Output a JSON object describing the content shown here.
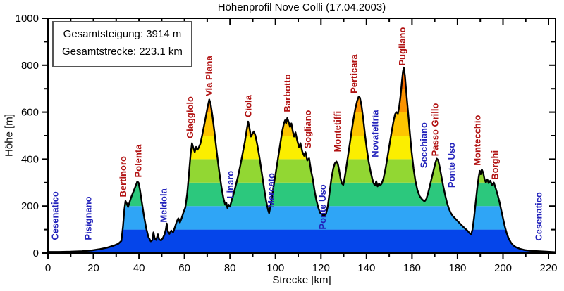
{
  "title": "Höhenprofil Nove Colli (17.04.2003)",
  "info_box": {
    "total_climb": "Gesamtsteigung: 3914 m",
    "total_distance": "Gesamtstrecke: 223.1 km"
  },
  "chart_data": {
    "type": "area",
    "title": "Höhenprofil Nove Colli (17.04.2003)",
    "xlabel": "Strecke [km]",
    "ylabel": "Höhe [m]",
    "xlim": [
      0,
      223.1
    ],
    "ylim": [
      0,
      1000
    ],
    "x_major_tick_step": 20,
    "x_minor_tick_step": 10,
    "y_major_tick_step": 200,
    "y_minor_tick_step": 100,
    "grid": "off",
    "total_climb_m": 3914,
    "total_distance_km": 223.1,
    "background_color": "#ffffff",
    "frame_color": "#000000",
    "line_color": "#000000",
    "label_colors": {
      "town": "#2222bb",
      "climb": "#b11212"
    },
    "elevation_bands": [
      {
        "from": 0,
        "to": 100,
        "color": "#0545ea"
      },
      {
        "from": 100,
        "to": 200,
        "color": "#2fa5f6"
      },
      {
        "from": 200,
        "to": 300,
        "color": "#2cc87d"
      },
      {
        "from": 300,
        "to": 400,
        "color": "#92d733"
      },
      {
        "from": 400,
        "to": 500,
        "color": "#fbee00"
      },
      {
        "from": 500,
        "to": 600,
        "color": "#fdc500"
      },
      {
        "from": 600,
        "to": 700,
        "color": "#fb9300"
      },
      {
        "from": 700,
        "to": 800,
        "color": "#f66c00"
      }
    ],
    "labels": [
      {
        "name": "Cesenatico",
        "km": 3.2,
        "alt": 55,
        "type": "town"
      },
      {
        "name": "Pisignano",
        "km": 17.8,
        "alt": 55,
        "type": "town"
      },
      {
        "name": "Bertinoro",
        "km": 33.2,
        "alt": 238,
        "type": "climb"
      },
      {
        "name": "Polenta",
        "km": 39.8,
        "alt": 322,
        "type": "climb"
      },
      {
        "name": "Meldola",
        "km": 50.9,
        "alt": 130,
        "type": "town"
      },
      {
        "name": "Giaggiolo",
        "km": 62.6,
        "alt": 488,
        "type": "climb"
      },
      {
        "name": "Via Piana",
        "km": 71.0,
        "alt": 668,
        "type": "climb"
      },
      {
        "name": "Linaro",
        "km": 80.3,
        "alt": 232,
        "type": "town"
      },
      {
        "name": "Ciola",
        "km": 88.1,
        "alt": 578,
        "type": "climb"
      },
      {
        "name": "Mercato",
        "km": 98.2,
        "alt": 192,
        "type": "town"
      },
      {
        "name": "Barbotto",
        "km": 105.4,
        "alt": 600,
        "type": "climb"
      },
      {
        "name": "Sogliano",
        "km": 114.4,
        "alt": 445,
        "type": "climb"
      },
      {
        "name": "Ponte Uso",
        "km": 120.9,
        "alt": 100,
        "type": "town"
      },
      {
        "name": "Montetiffi",
        "km": 127.4,
        "alt": 430,
        "type": "climb"
      },
      {
        "name": "Perticara",
        "km": 134.6,
        "alt": 680,
        "type": "climb"
      },
      {
        "name": "Novafeltria",
        "km": 143.9,
        "alt": 408,
        "type": "town"
      },
      {
        "name": "Pugliano",
        "km": 155.9,
        "alt": 798,
        "type": "climb"
      },
      {
        "name": "Secchiano",
        "km": 165.3,
        "alt": 362,
        "type": "town"
      },
      {
        "name": "Passo Grillo",
        "km": 170.2,
        "alt": 412,
        "type": "climb"
      },
      {
        "name": "Ponte Uso",
        "km": 177.6,
        "alt": 278,
        "type": "town"
      },
      {
        "name": "Montecchio",
        "km": 188.9,
        "alt": 372,
        "type": "climb"
      },
      {
        "name": "Borghi",
        "km": 196.6,
        "alt": 312,
        "type": "climb"
      },
      {
        "name": "Cesenatico",
        "km": 215.8,
        "alt": 52,
        "type": "town"
      }
    ],
    "profile_km_m": [
      [
        0,
        5
      ],
      [
        5,
        5
      ],
      [
        10,
        6
      ],
      [
        15,
        8
      ],
      [
        19,
        11
      ],
      [
        23,
        17
      ],
      [
        26,
        23
      ],
      [
        29,
        32
      ],
      [
        31,
        40
      ],
      [
        32.3,
        52
      ],
      [
        33,
        115
      ],
      [
        33.6,
        185
      ],
      [
        34.1,
        222
      ],
      [
        34.6,
        212
      ],
      [
        35.2,
        196
      ],
      [
        35.9,
        218
      ],
      [
        36.7,
        240
      ],
      [
        37.6,
        262
      ],
      [
        38.5,
        284
      ],
      [
        39.3,
        305
      ],
      [
        39.8,
        300
      ],
      [
        40.4,
        272
      ],
      [
        41.2,
        220
      ],
      [
        42.2,
        158
      ],
      [
        43.2,
        105
      ],
      [
        44.2,
        68
      ],
      [
        45.2,
        50
      ],
      [
        45.9,
        55
      ],
      [
        46.4,
        88
      ],
      [
        46.9,
        62
      ],
      [
        47.6,
        56
      ],
      [
        48.3,
        80
      ],
      [
        48.9,
        58
      ],
      [
        49.7,
        54
      ],
      [
        50.5,
        64
      ],
      [
        51.2,
        78
      ],
      [
        51.8,
        100
      ],
      [
        52.2,
        126
      ],
      [
        52.7,
        92
      ],
      [
        53.4,
        82
      ],
      [
        54.2,
        96
      ],
      [
        55,
        88
      ],
      [
        55.8,
        110
      ],
      [
        56.6,
        134
      ],
      [
        57.3,
        148
      ],
      [
        58,
        130
      ],
      [
        58.8,
        150
      ],
      [
        59.6,
        174
      ],
      [
        60.4,
        195
      ],
      [
        61.2,
        252
      ],
      [
        62,
        340
      ],
      [
        62.7,
        420
      ],
      [
        63.3,
        468
      ],
      [
        63.9,
        448
      ],
      [
        64.5,
        430
      ],
      [
        65.1,
        452
      ],
      [
        65.7,
        440
      ],
      [
        66.3,
        450
      ],
      [
        67,
        466
      ],
      [
        67.8,
        502
      ],
      [
        68.6,
        542
      ],
      [
        69.4,
        582
      ],
      [
        70.2,
        624
      ],
      [
        70.9,
        654
      ],
      [
        71.5,
        636
      ],
      [
        72.3,
        584
      ],
      [
        73.2,
        515
      ],
      [
        74.2,
        428
      ],
      [
        75.2,
        352
      ],
      [
        76.2,
        285
      ],
      [
        77.1,
        235
      ],
      [
        77.9,
        206
      ],
      [
        78.4,
        214
      ],
      [
        78.9,
        192
      ],
      [
        79.4,
        206
      ],
      [
        80,
        198
      ],
      [
        80.8,
        226
      ],
      [
        81.7,
        255
      ],
      [
        82.6,
        290
      ],
      [
        83.5,
        325
      ],
      [
        84.5,
        370
      ],
      [
        85.5,
        420
      ],
      [
        86.5,
        472
      ],
      [
        87.3,
        520
      ],
      [
        88,
        560
      ],
      [
        88.6,
        532
      ],
      [
        89.2,
        496
      ],
      [
        89.9,
        508
      ],
      [
        90.5,
        518
      ],
      [
        91.2,
        500
      ],
      [
        92,
        462
      ],
      [
        92.9,
        412
      ],
      [
        93.9,
        348
      ],
      [
        94.9,
        282
      ],
      [
        95.9,
        222
      ],
      [
        96.7,
        185
      ],
      [
        97.2,
        170
      ],
      [
        97.8,
        198
      ],
      [
        98.6,
        248
      ],
      [
        99.4,
        298
      ],
      [
        100.3,
        352
      ],
      [
        101.2,
        408
      ],
      [
        102.1,
        465
      ],
      [
        103,
        520
      ],
      [
        103.7,
        552
      ],
      [
        104.2,
        565
      ],
      [
        104.7,
        553
      ],
      [
        105.2,
        575
      ],
      [
        105.8,
        558
      ],
      [
        106.4,
        537
      ],
      [
        107,
        552
      ],
      [
        107.6,
        518
      ],
      [
        108.2,
        496
      ],
      [
        108.8,
        514
      ],
      [
        109.6,
        478
      ],
      [
        110.4,
        450
      ],
      [
        111,
        468
      ],
      [
        111.8,
        432
      ],
      [
        112.6,
        414
      ],
      [
        113.2,
        430
      ],
      [
        114,
        394
      ],
      [
        114.8,
        404
      ],
      [
        115.6,
        352
      ],
      [
        116.4,
        315
      ],
      [
        117.2,
        265
      ],
      [
        118,
        225
      ],
      [
        118.8,
        194
      ],
      [
        119.6,
        172
      ],
      [
        120.5,
        163
      ],
      [
        121.4,
        160
      ],
      [
        122.2,
        166
      ],
      [
        123,
        200
      ],
      [
        123.8,
        258
      ],
      [
        124.6,
        318
      ],
      [
        125.4,
        360
      ],
      [
        126.1,
        382
      ],
      [
        126.8,
        390
      ],
      [
        127.4,
        380
      ],
      [
        128,
        352
      ],
      [
        128.6,
        318
      ],
      [
        129.2,
        296
      ],
      [
        129.8,
        290
      ],
      [
        130.4,
        318
      ],
      [
        131.1,
        362
      ],
      [
        131.9,
        415
      ],
      [
        132.7,
        468
      ],
      [
        133.5,
        520
      ],
      [
        134.3,
        570
      ],
      [
        135.1,
        615
      ],
      [
        135.9,
        648
      ],
      [
        136.6,
        666
      ],
      [
        137.1,
        662
      ],
      [
        137.8,
        630
      ],
      [
        138.6,
        570
      ],
      [
        139.4,
        500
      ],
      [
        140.2,
        438
      ],
      [
        141,
        388
      ],
      [
        141.8,
        348
      ],
      [
        142.5,
        318
      ],
      [
        143.1,
        298
      ],
      [
        143.7,
        288
      ],
      [
        144.3,
        306
      ],
      [
        144.9,
        284
      ],
      [
        145.5,
        296
      ],
      [
        146.1,
        288
      ],
      [
        146.7,
        296
      ],
      [
        147.5,
        318
      ],
      [
        148.4,
        360
      ],
      [
        149.3,
        412
      ],
      [
        150.2,
        465
      ],
      [
        151.1,
        518
      ],
      [
        151.9,
        562
      ],
      [
        152.6,
        592
      ],
      [
        153.2,
        600
      ],
      [
        153.8,
        594
      ],
      [
        154.4,
        625
      ],
      [
        155,
        670
      ],
      [
        155.5,
        722
      ],
      [
        156,
        772
      ],
      [
        156.4,
        790
      ],
      [
        156.9,
        755
      ],
      [
        157.5,
        685
      ],
      [
        158.3,
        598
      ],
      [
        159.1,
        508
      ],
      [
        159.9,
        428
      ],
      [
        160.7,
        360
      ],
      [
        161.5,
        308
      ],
      [
        162.4,
        268
      ],
      [
        163.4,
        242
      ],
      [
        164.5,
        228
      ],
      [
        165.5,
        220
      ],
      [
        166.3,
        230
      ],
      [
        167.1,
        256
      ],
      [
        167.9,
        288
      ],
      [
        168.7,
        320
      ],
      [
        169.5,
        352
      ],
      [
        170.3,
        384
      ],
      [
        170.9,
        402
      ],
      [
        171.5,
        396
      ],
      [
        172.2,
        366
      ],
      [
        173,
        324
      ],
      [
        173.8,
        282
      ],
      [
        174.6,
        246
      ],
      [
        175.4,
        214
      ],
      [
        176.2,
        190
      ],
      [
        177,
        172
      ],
      [
        177.9,
        158
      ],
      [
        178.9,
        148
      ],
      [
        180.1,
        136
      ],
      [
        181.5,
        122
      ],
      [
        182.9,
        108
      ],
      [
        184.3,
        96
      ],
      [
        185.3,
        85
      ],
      [
        186,
        80
      ],
      [
        186.6,
        100
      ],
      [
        187.3,
        152
      ],
      [
        188,
        215
      ],
      [
        188.7,
        278
      ],
      [
        189.3,
        322
      ],
      [
        189.8,
        350
      ],
      [
        190.2,
        336
      ],
      [
        190.7,
        356
      ],
      [
        191.3,
        342
      ],
      [
        191.9,
        314
      ],
      [
        192.5,
        300
      ],
      [
        193.1,
        314
      ],
      [
        193.7,
        298
      ],
      [
        194.4,
        308
      ],
      [
        195.2,
        290
      ],
      [
        196,
        300
      ],
      [
        196.8,
        276
      ],
      [
        197.6,
        250
      ],
      [
        198.4,
        220
      ],
      [
        199.2,
        184
      ],
      [
        200,
        148
      ],
      [
        200.8,
        114
      ],
      [
        201.6,
        86
      ],
      [
        202.5,
        62
      ],
      [
        203.5,
        45
      ],
      [
        204.5,
        33
      ],
      [
        205.7,
        25
      ],
      [
        207.5,
        18
      ],
      [
        209.5,
        13
      ],
      [
        212,
        10
      ],
      [
        215.5,
        8
      ],
      [
        219,
        6
      ],
      [
        223.1,
        4
      ]
    ]
  }
}
